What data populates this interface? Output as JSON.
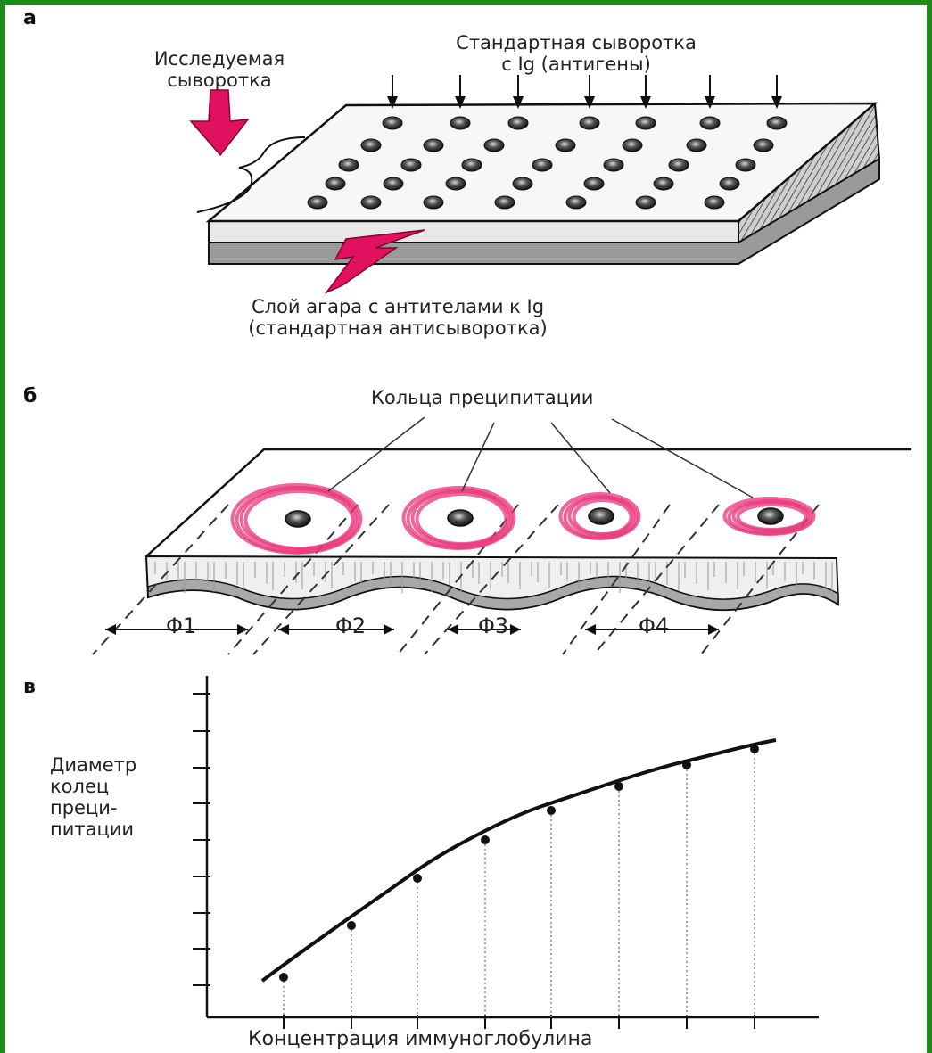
{
  "panels": {
    "a": {
      "letter": "а",
      "test_serum": [
        "Исследуемая",
        "сыворотка"
      ],
      "standard_serum": [
        "Стандартная сыворотка",
        "с Ig (антигены)"
      ],
      "agar_layer": [
        "Слой агара с антителами к Ig",
        "(стандартная антисыворотка)"
      ]
    },
    "b": {
      "letter": "б",
      "rings_label": "Кольца преципитации",
      "diameters": [
        "Φ1",
        "Φ2",
        "Φ3",
        "Φ4"
      ]
    },
    "c": {
      "letter": "в",
      "ylabel": [
        "Диаметр",
        "колец",
        "преци-",
        "питации"
      ],
      "xlabel": "Концентрация иммуноглобулина"
    }
  },
  "colors": {
    "frame": "#1f8a1c",
    "arrow": "#e0115f",
    "ring": "#e8347a"
  }
}
